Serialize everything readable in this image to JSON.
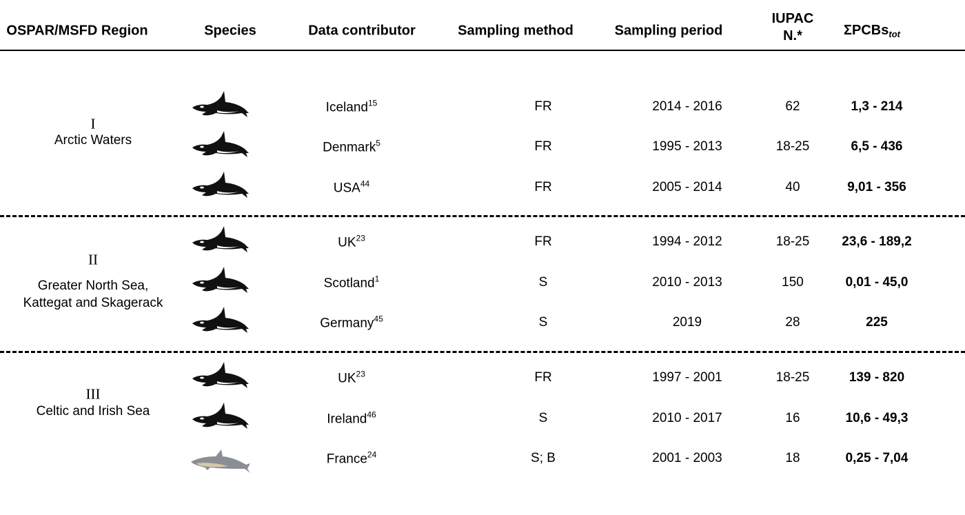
{
  "header": {
    "columns": [
      "OSPAR/MSFD Region",
      "Species",
      "Data contributor",
      "Sampling method",
      "Sampling period",
      "IUPAC N.*",
      {
        "text": "ΣPCBs",
        "subscript": "tot"
      }
    ]
  },
  "regions": [
    {
      "number": "I",
      "name": "Arctic Waters"
    },
    {
      "number": "II",
      "name": "Greater North Sea, Kattegat and Skagerack"
    },
    {
      "number": "III",
      "name": "Celtic and Irish Sea"
    }
  ],
  "rows": [
    {
      "contributor": "Iceland",
      "ref": "15",
      "method": "FR",
      "period": "2014 - 2016",
      "iupac": "62",
      "pcbs": "1,3 - 214"
    },
    {
      "contributor": "Denmark",
      "ref": "5",
      "method": "FR",
      "period": "1995 - 2013",
      "iupac": "18-25",
      "pcbs": "6,5 - 436"
    },
    {
      "contributor": "USA",
      "ref": "44",
      "method": "FR",
      "period": "2005 - 2014",
      "iupac": "40",
      "pcbs": "9,01 - 356"
    },
    {
      "contributor": "UK",
      "ref": "23",
      "method": "FR",
      "period": "1994 - 2012",
      "iupac": "18-25",
      "pcbs": "23,6 - 189,2"
    },
    {
      "contributor": "Scotland",
      "ref": "1",
      "method": "S",
      "period": "2010 - 2013",
      "iupac": "150",
      "pcbs": "0,01 - 45,0"
    },
    {
      "contributor": "Germany",
      "ref": "45",
      "method": "S",
      "period": "2019",
      "iupac": "28",
      "pcbs": "225"
    },
    {
      "contributor": "UK",
      "ref": "23",
      "method": "FR",
      "period": "1997 - 2001",
      "iupac": "18-25",
      "pcbs": "139 - 820"
    },
    {
      "contributor": "Ireland",
      "ref": "46",
      "method": "S",
      "period": "2010 - 2017",
      "iupac": "16",
      "pcbs": "10,6 - 49,3"
    },
    {
      "contributor": "France",
      "ref": "24",
      "method": "S; B",
      "period": "2001 - 2003",
      "iupac": "18",
      "pcbs": "0,25 - 7,04"
    }
  ]
}
